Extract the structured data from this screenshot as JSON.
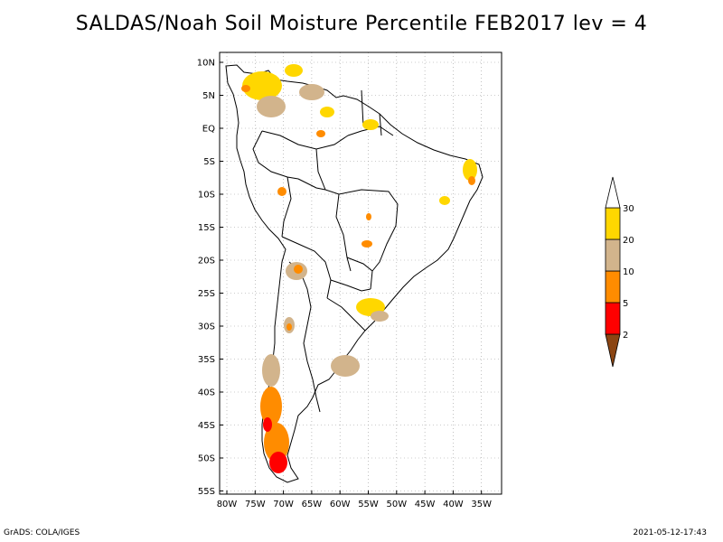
{
  "title": "SALDAS/Noah Soil Moisture Percentile FEB2017 lev = 4",
  "map": {
    "lat_labels": [
      "10N",
      "5N",
      "EQ",
      "5S",
      "10S",
      "15S",
      "20S",
      "25S",
      "30S",
      "35S",
      "40S",
      "45S",
      "50S",
      "55S"
    ],
    "lon_labels": [
      "80W",
      "75W",
      "70W",
      "65W",
      "60W",
      "55W",
      "50W",
      "45W",
      "40W",
      "35W"
    ],
    "gridlines": "dotted"
  },
  "legend": {
    "boundaries": [
      "2",
      "5",
      "10",
      "20",
      "30"
    ],
    "colors": [
      "#8b4513",
      "#ff0000",
      "#ff8c00",
      "#d2b48c",
      "#ffd700",
      "#ffffff"
    ]
  },
  "footer": {
    "left": "GrADS: COLA/IGES",
    "right": "2021-05-12-17:43"
  }
}
